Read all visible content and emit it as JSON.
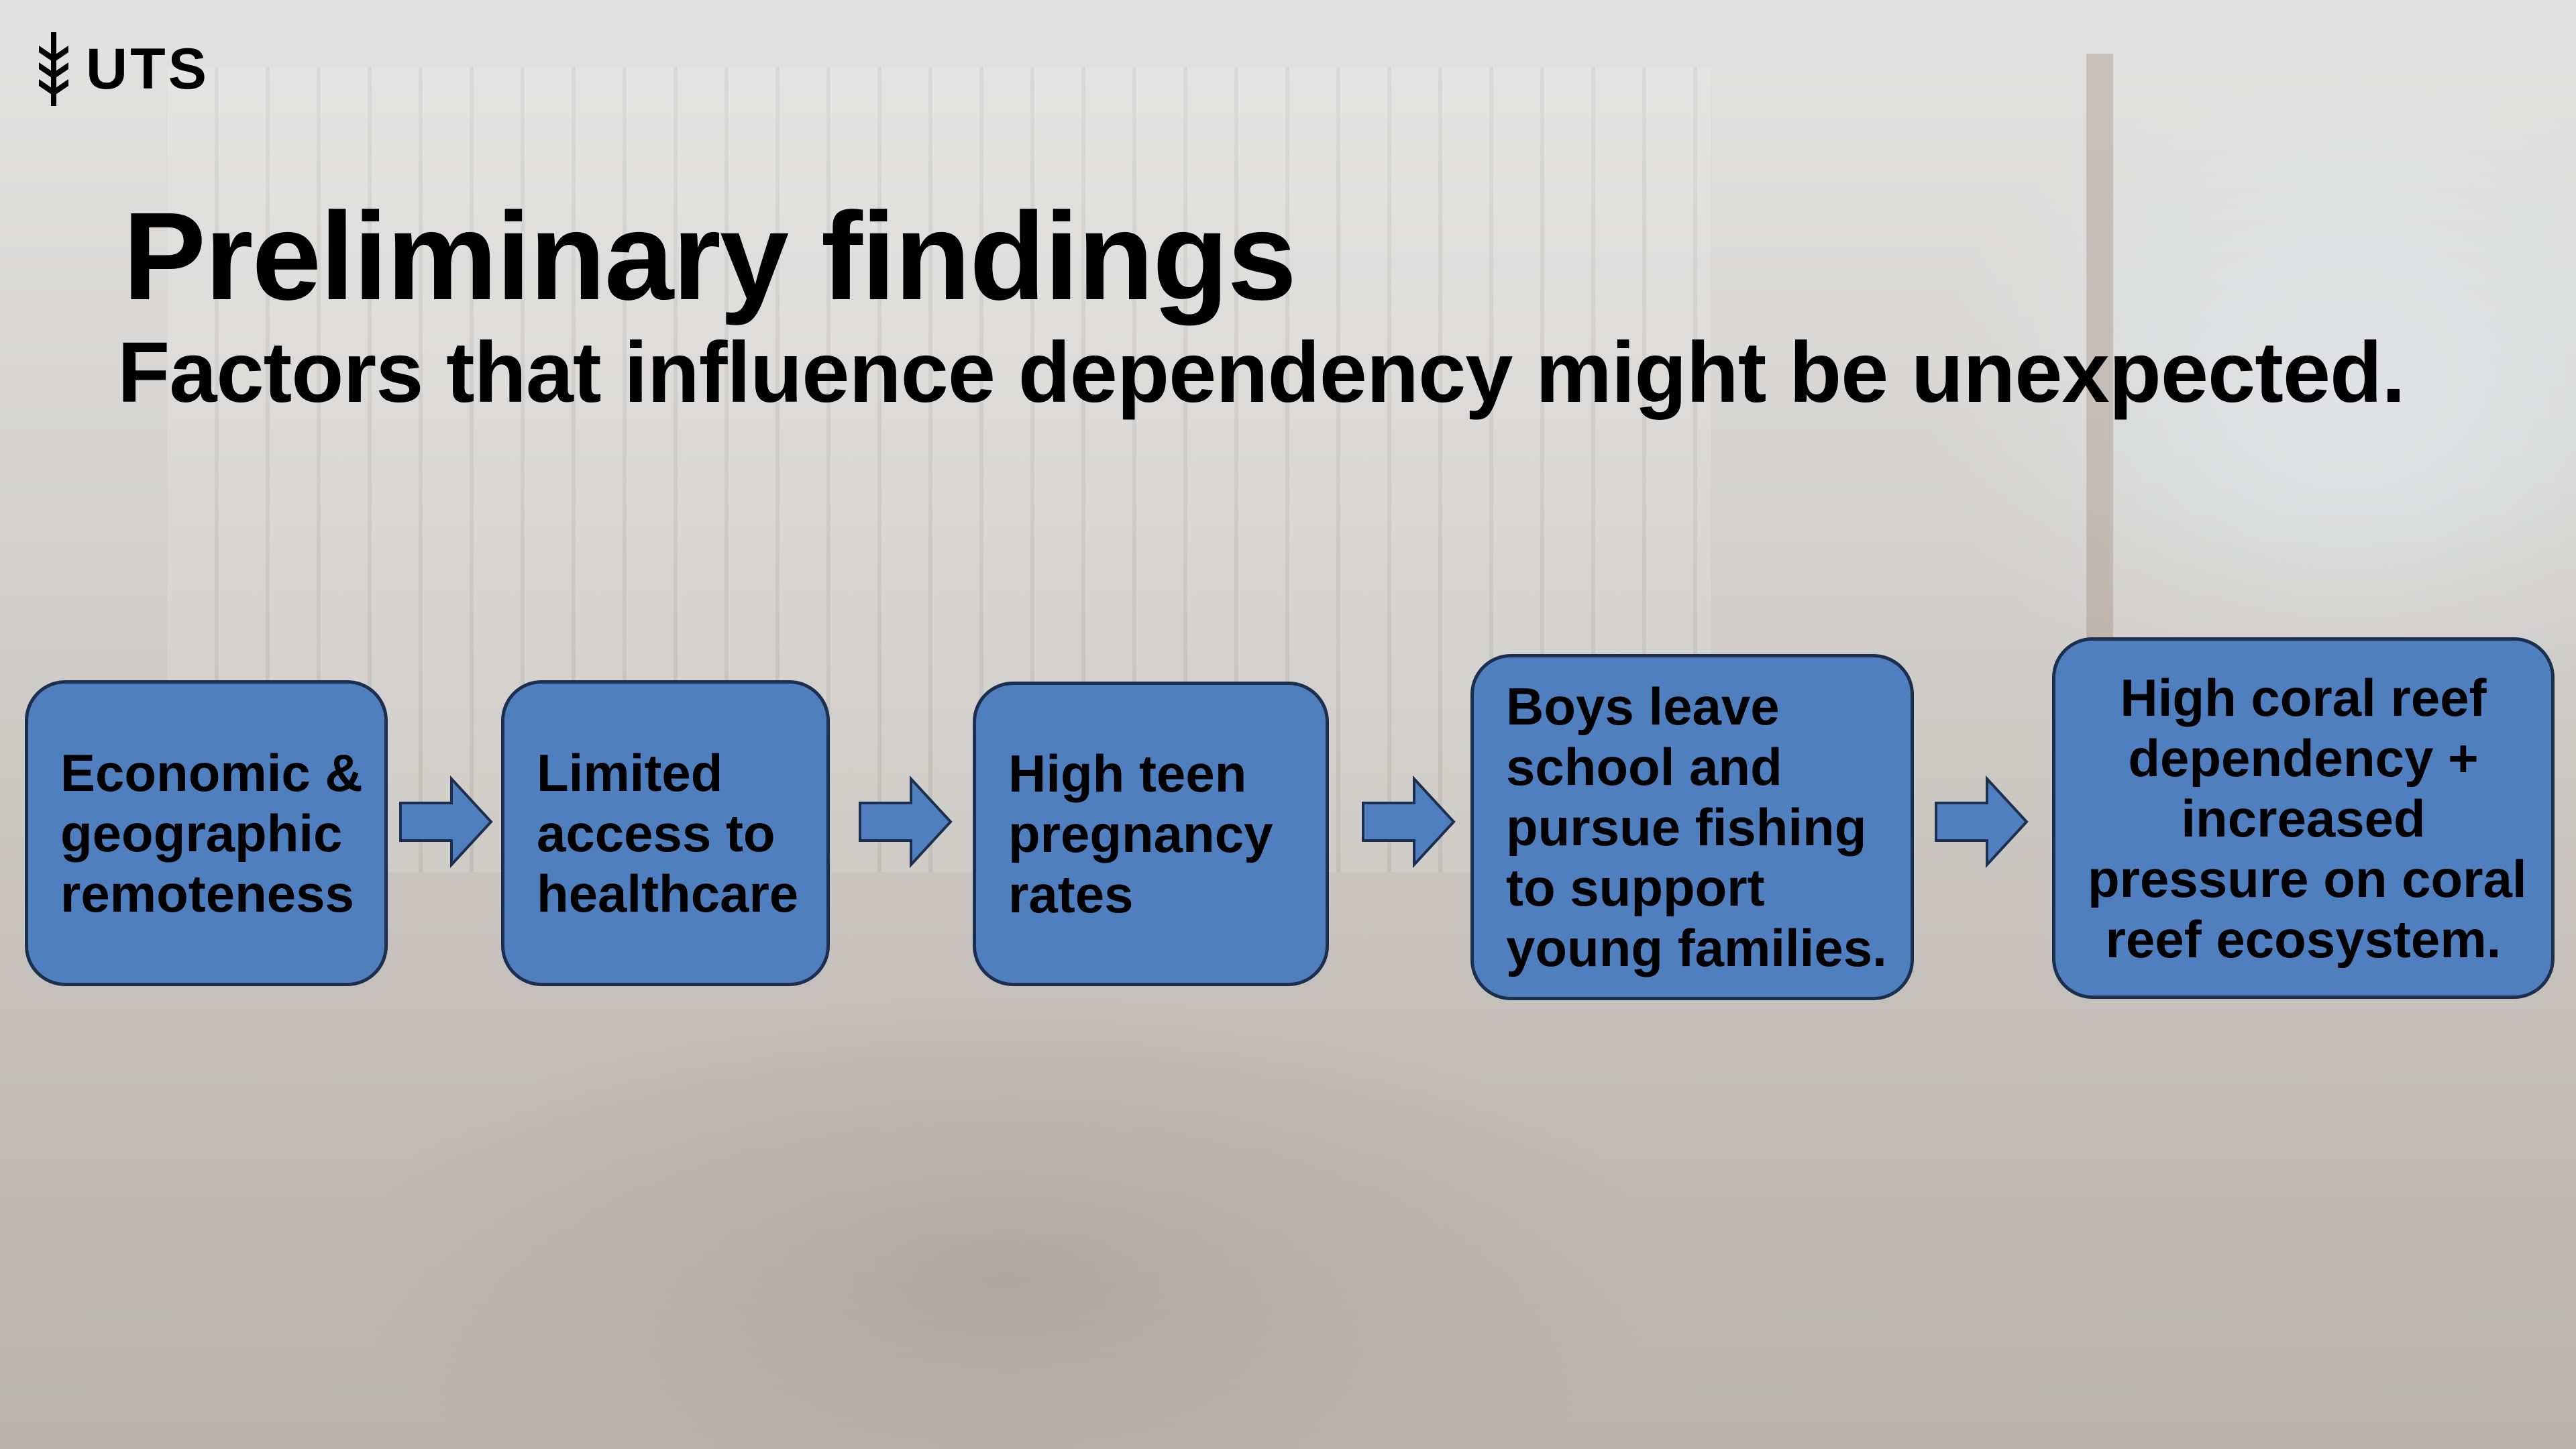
{
  "header": {
    "logo": "UTS"
  },
  "title": "Preliminary findings",
  "subtitle": "Factors that influence dependency might be unexpected.",
  "nodes": [
    {
      "lines": [
        "Economic &",
        "geographic",
        "remoteness"
      ]
    },
    {
      "lines": [
        "Limited",
        "access to",
        "healthcare"
      ]
    },
    {
      "lines": [
        "High teen",
        "pregnancy",
        "rates"
      ]
    },
    {
      "lines": [
        "Boys leave",
        "school and",
        "pursue fishing",
        "to support",
        "young families."
      ]
    },
    {
      "lines": [
        "High coral reef",
        "dependency +",
        "increased",
        "pressure on coral",
        "reef ecosystem."
      ]
    }
  ]
}
